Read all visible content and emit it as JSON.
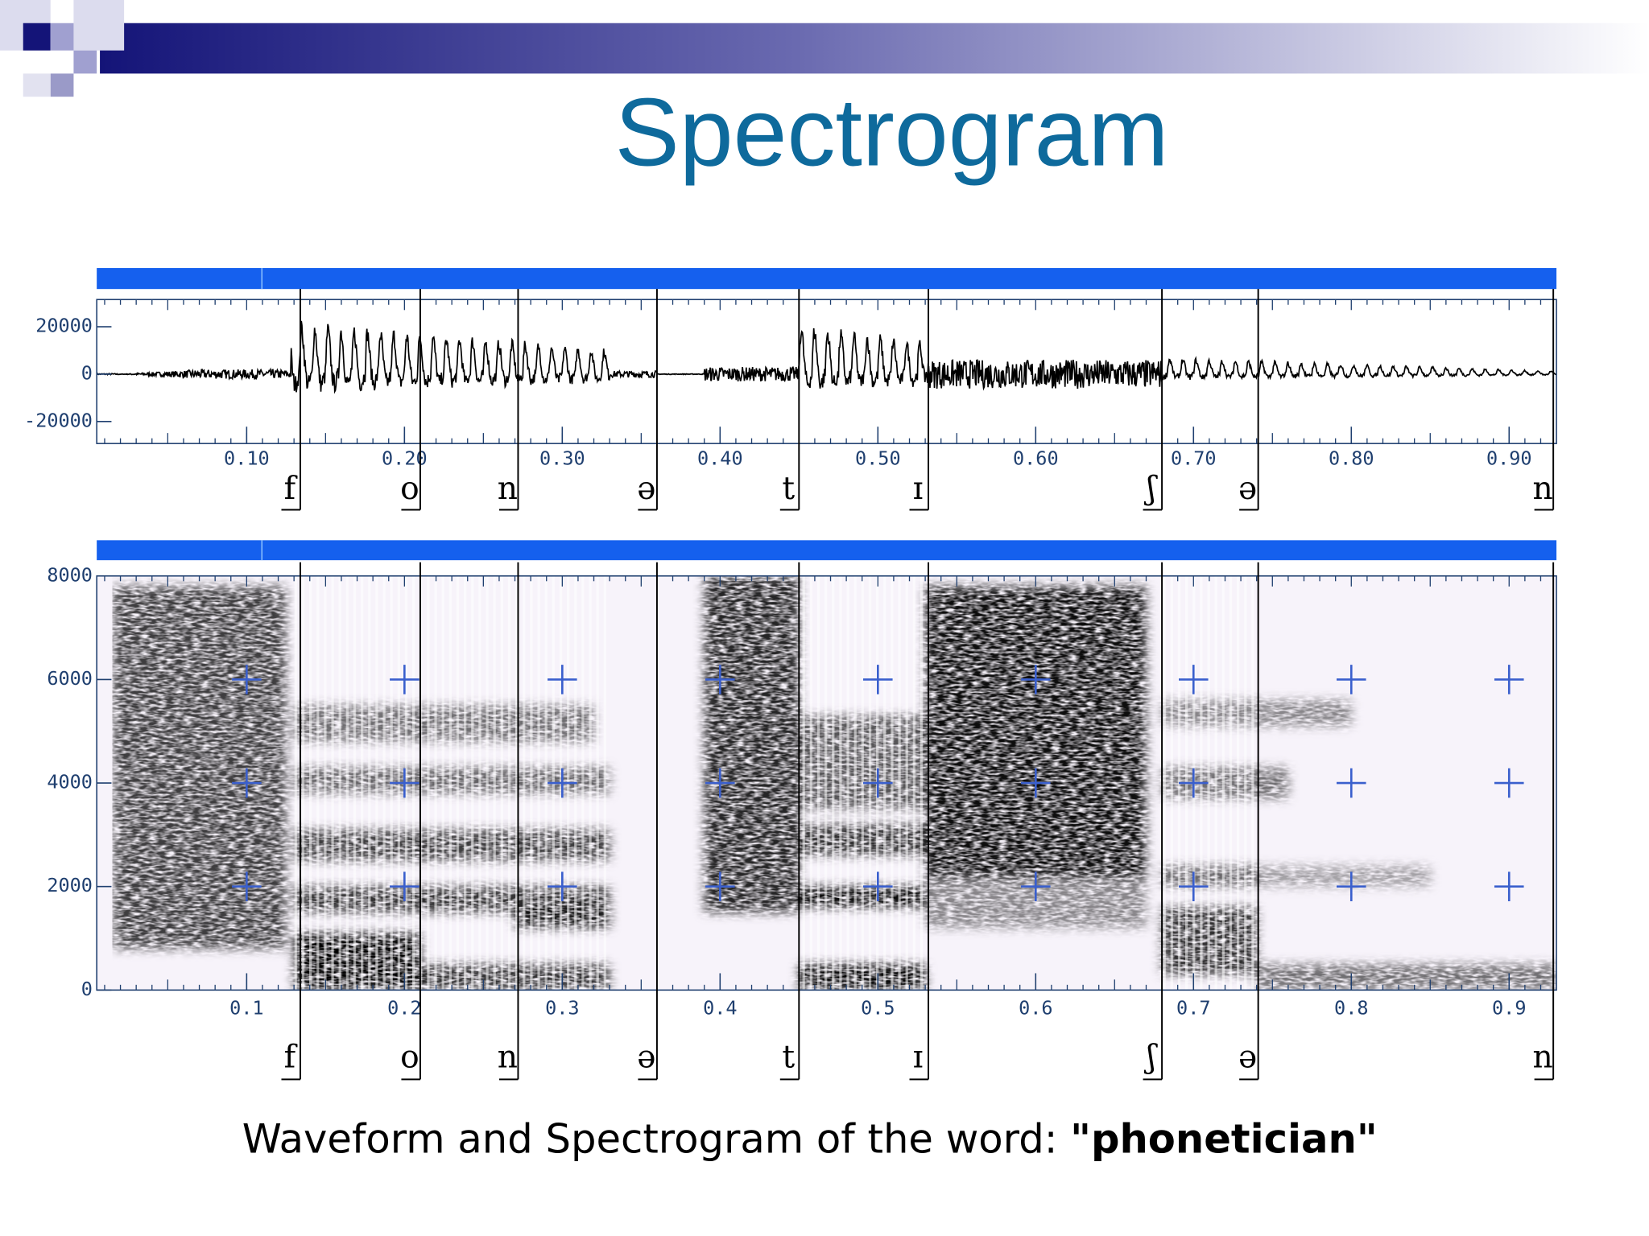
{
  "title": "Spectrogram",
  "chart_data": [
    {
      "type": "waveform",
      "xlim": [
        0.005,
        0.93
      ],
      "ylim": [
        -29300,
        31500
      ],
      "color": "#000000",
      "xticks": [
        {
          "value": 0.1,
          "label": "0.10"
        },
        {
          "value": 0.2,
          "label": "0.20"
        },
        {
          "value": 0.3,
          "label": "0.30"
        },
        {
          "value": 0.4,
          "label": "0.40"
        },
        {
          "value": 0.5,
          "label": "0.50"
        },
        {
          "value": 0.6,
          "label": "0.60"
        },
        {
          "value": 0.7,
          "label": "0.70"
        },
        {
          "value": 0.8,
          "label": "0.80"
        },
        {
          "value": 0.9,
          "label": "0.90"
        }
      ],
      "yticks": [
        -20000,
        0,
        20000
      ],
      "segments": {
        "labels": [
          "f",
          "o",
          "n",
          "ə",
          "t",
          "ɪ",
          "ʃ",
          "ə",
          "n"
        ],
        "ends": [
          0.134,
          0.21,
          0.272,
          0.36,
          0.45,
          0.532,
          0.68,
          0.741,
          0.928
        ]
      }
    },
    {
      "type": "spectrogram",
      "xlim": [
        0.005,
        0.93
      ],
      "ylim": [
        0,
        8000
      ],
      "color": "#000000",
      "xticks": [
        0.1,
        0.2,
        0.3,
        0.4,
        0.5,
        0.6,
        0.7,
        0.8,
        0.9
      ],
      "yticks": [
        0,
        2000,
        4000,
        6000,
        8000
      ],
      "segments": {
        "labels": [
          "f",
          "o",
          "n",
          "ə",
          "t",
          "ɪ",
          "ʃ",
          "ə",
          "n"
        ],
        "ends": [
          0.134,
          0.21,
          0.272,
          0.36,
          0.45,
          0.532,
          0.68,
          0.741,
          0.928
        ]
      }
    }
  ],
  "caption": {
    "text": "Waveform and Spectrogram of the word:",
    "emphasis": "\"phonetician\""
  }
}
